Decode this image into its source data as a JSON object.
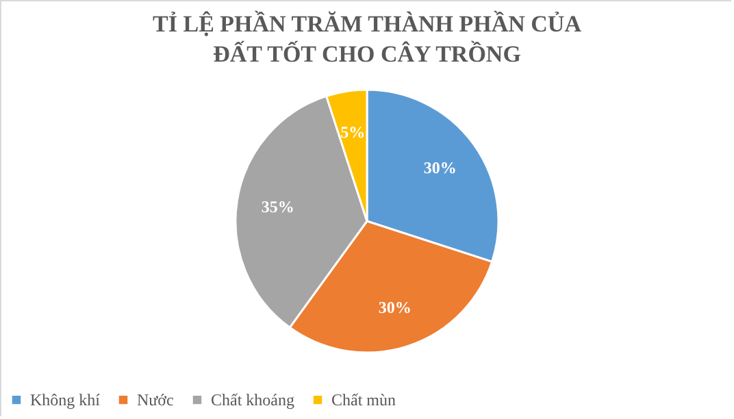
{
  "chart_data": {
    "type": "pie",
    "title": "TỈ LỆ PHẦN TRĂM THÀNH PHẦN CỦA ĐẤT TỐT CHO CÂY TRỒNG",
    "categories": [
      "Không khí",
      "Nước",
      "Chất khoáng",
      "Chất mùn"
    ],
    "values": [
      30,
      30,
      35,
      5
    ],
    "colors": [
      "#5b9bd5",
      "#ed7d31",
      "#a5a5a5",
      "#ffc000"
    ],
    "value_labels": [
      "30%",
      "30%",
      "35%",
      "5%"
    ],
    "legend": "bottom"
  }
}
